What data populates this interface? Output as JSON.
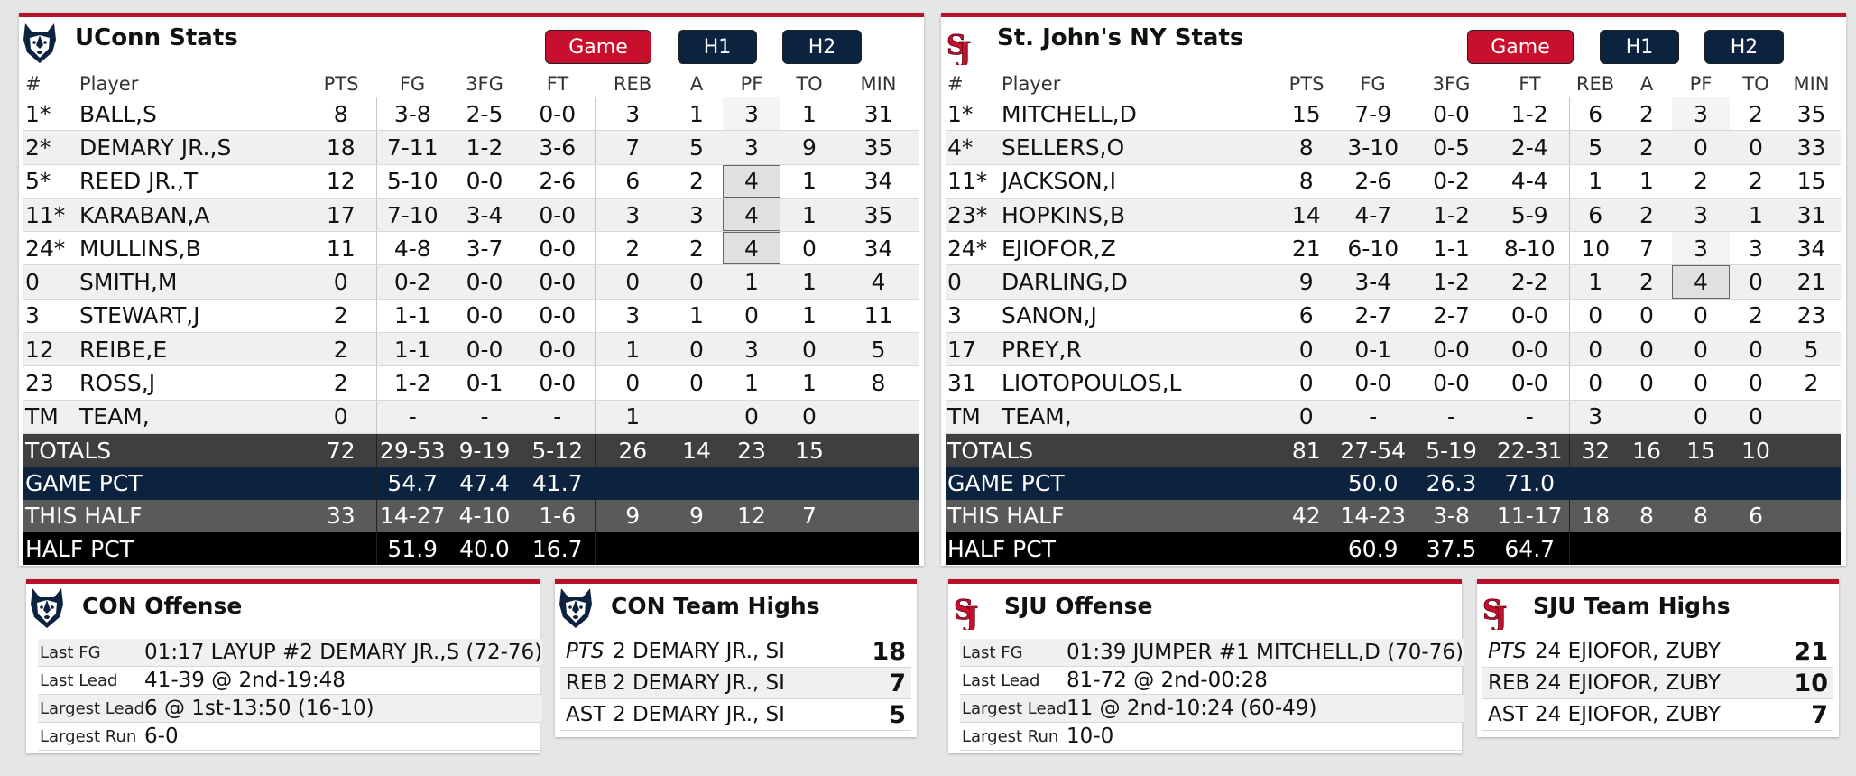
{
  "columns": [
    "#",
    "Player",
    "PTS",
    "FG",
    "3FG",
    "FT",
    "REB",
    "A",
    "PF",
    "TO",
    "MIN"
  ],
  "buttons": [
    "Game",
    "H1",
    "H2"
  ],
  "uconn": {
    "title": "UConn Stats",
    "players": [
      {
        "num": "1*",
        "name": "BALL,S",
        "pts": "8",
        "fg": "3-8",
        "tfg": "2-5",
        "ft": "0-0",
        "reb": "3",
        "a": "1",
        "pf": "3",
        "to": "1",
        "min": "31"
      },
      {
        "num": "2*",
        "name": "DEMARY JR.,S",
        "pts": "18",
        "fg": "7-11",
        "tfg": "1-2",
        "ft": "3-6",
        "reb": "7",
        "a": "5",
        "pf": "3",
        "to": "9",
        "min": "35"
      },
      {
        "num": "5*",
        "name": "REED JR.,T",
        "pts": "12",
        "fg": "5-10",
        "tfg": "0-0",
        "ft": "2-6",
        "reb": "6",
        "a": "2",
        "pf": "4",
        "to": "1",
        "min": "34"
      },
      {
        "num": "11*",
        "name": "KARABAN,A",
        "pts": "17",
        "fg": "7-10",
        "tfg": "3-4",
        "ft": "0-0",
        "reb": "3",
        "a": "3",
        "pf": "4",
        "to": "1",
        "min": "35"
      },
      {
        "num": "24*",
        "name": "MULLINS,B",
        "pts": "11",
        "fg": "4-8",
        "tfg": "3-7",
        "ft": "0-0",
        "reb": "2",
        "a": "2",
        "pf": "4",
        "to": "0",
        "min": "34"
      },
      {
        "num": "0",
        "name": "SMITH,M",
        "pts": "0",
        "fg": "0-2",
        "tfg": "0-0",
        "ft": "0-0",
        "reb": "0",
        "a": "0",
        "pf": "1",
        "to": "1",
        "min": "4"
      },
      {
        "num": "3",
        "name": "STEWART,J",
        "pts": "2",
        "fg": "1-1",
        "tfg": "0-0",
        "ft": "0-0",
        "reb": "3",
        "a": "1",
        "pf": "0",
        "to": "1",
        "min": "11"
      },
      {
        "num": "12",
        "name": "REIBE,E",
        "pts": "2",
        "fg": "1-1",
        "tfg": "0-0",
        "ft": "0-0",
        "reb": "1",
        "a": "0",
        "pf": "3",
        "to": "0",
        "min": "5"
      },
      {
        "num": "23",
        "name": "ROSS,J",
        "pts": "2",
        "fg": "1-2",
        "tfg": "0-1",
        "ft": "0-0",
        "reb": "0",
        "a": "0",
        "pf": "1",
        "to": "1",
        "min": "8"
      },
      {
        "num": "TM",
        "name": "TEAM,",
        "pts": "0",
        "fg": "-",
        "tfg": "-",
        "ft": "-",
        "reb": "1",
        "a": "",
        "pf": "0",
        "to": "0",
        "min": ""
      }
    ],
    "totals": {
      "label": "TOTALS",
      "pts": "72",
      "fg": "29-53",
      "tfg": "9-19",
      "ft": "5-12",
      "reb": "26",
      "a": "14",
      "pf": "23",
      "to": "15"
    },
    "game_pct": {
      "label": "GAME PCT",
      "fg": "54.7",
      "tfg": "47.4",
      "ft": "41.7"
    },
    "this_half": {
      "label": "THIS HALF",
      "pts": "33",
      "fg": "14-27",
      "tfg": "4-10",
      "ft": "1-6",
      "reb": "9",
      "a": "9",
      "pf": "12",
      "to": "7"
    },
    "half_pct": {
      "label": "HALF PCT",
      "fg": "51.9",
      "tfg": "40.0",
      "ft": "16.7"
    },
    "offense": {
      "title": "CON Offense",
      "rows": [
        {
          "k": "Last FG",
          "v": "01:17 LAYUP #2 DEMARY JR.,S (72-76)"
        },
        {
          "k": "Last Lead",
          "v": "41-39 @ 2nd-19:48"
        },
        {
          "k": "Largest Lead",
          "v": "6 @ 1st-13:50 (16-10)"
        },
        {
          "k": "Largest Run",
          "v": "6-0"
        }
      ]
    },
    "highs": {
      "title": "CON Team Highs",
      "rows": [
        {
          "cat": "PTS",
          "player": "2 DEMARY JR., SI",
          "value": "18"
        },
        {
          "cat": "REB",
          "player": "2 DEMARY JR., SI",
          "value": "7"
        },
        {
          "cat": "AST",
          "player": "2 DEMARY JR., SI",
          "value": "5"
        }
      ]
    }
  },
  "sju": {
    "title": "St. John's NY Stats",
    "players": [
      {
        "num": "1*",
        "name": "MITCHELL,D",
        "pts": "15",
        "fg": "7-9",
        "tfg": "0-0",
        "ft": "1-2",
        "reb": "6",
        "a": "2",
        "pf": "3",
        "to": "2",
        "min": "35"
      },
      {
        "num": "4*",
        "name": "SELLERS,O",
        "pts": "8",
        "fg": "3-10",
        "tfg": "0-5",
        "ft": "2-4",
        "reb": "5",
        "a": "2",
        "pf": "0",
        "to": "0",
        "min": "33"
      },
      {
        "num": "11*",
        "name": "JACKSON,I",
        "pts": "8",
        "fg": "2-6",
        "tfg": "0-2",
        "ft": "4-4",
        "reb": "1",
        "a": "1",
        "pf": "2",
        "to": "2",
        "min": "15"
      },
      {
        "num": "23*",
        "name": "HOPKINS,B",
        "pts": "14",
        "fg": "4-7",
        "tfg": "1-2",
        "ft": "5-9",
        "reb": "6",
        "a": "2",
        "pf": "3",
        "to": "1",
        "min": "31"
      },
      {
        "num": "24*",
        "name": "EJIOFOR,Z",
        "pts": "21",
        "fg": "6-10",
        "tfg": "1-1",
        "ft": "8-10",
        "reb": "10",
        "a": "7",
        "pf": "3",
        "to": "3",
        "min": "34"
      },
      {
        "num": "0",
        "name": "DARLING,D",
        "pts": "9",
        "fg": "3-4",
        "tfg": "1-2",
        "ft": "2-2",
        "reb": "1",
        "a": "2",
        "pf": "4",
        "to": "0",
        "min": "21"
      },
      {
        "num": "3",
        "name": "SANON,J",
        "pts": "6",
        "fg": "2-7",
        "tfg": "2-7",
        "ft": "0-0",
        "reb": "0",
        "a": "0",
        "pf": "0",
        "to": "2",
        "min": "23"
      },
      {
        "num": "17",
        "name": "PREY,R",
        "pts": "0",
        "fg": "0-1",
        "tfg": "0-0",
        "ft": "0-0",
        "reb": "0",
        "a": "0",
        "pf": "0",
        "to": "0",
        "min": "5"
      },
      {
        "num": "31",
        "name": "LIOTOPOULOS,L",
        "pts": "0",
        "fg": "0-0",
        "tfg": "0-0",
        "ft": "0-0",
        "reb": "0",
        "a": "0",
        "pf": "0",
        "to": "0",
        "min": "2"
      },
      {
        "num": "TM",
        "name": "TEAM,",
        "pts": "0",
        "fg": "-",
        "tfg": "-",
        "ft": "-",
        "reb": "3",
        "a": "",
        "pf": "0",
        "to": "0",
        "min": ""
      }
    ],
    "totals": {
      "label": "TOTALS",
      "pts": "81",
      "fg": "27-54",
      "tfg": "5-19",
      "ft": "22-31",
      "reb": "32",
      "a": "16",
      "pf": "15",
      "to": "10"
    },
    "game_pct": {
      "label": "GAME PCT",
      "fg": "50.0",
      "tfg": "26.3",
      "ft": "71.0"
    },
    "this_half": {
      "label": "THIS HALF",
      "pts": "42",
      "fg": "14-23",
      "tfg": "3-8",
      "ft": "11-17",
      "reb": "18",
      "a": "8",
      "pf": "8",
      "to": "6"
    },
    "half_pct": {
      "label": "HALF PCT",
      "fg": "60.9",
      "tfg": "37.5",
      "ft": "64.7"
    },
    "offense": {
      "title": "SJU Offense",
      "rows": [
        {
          "k": "Last FG",
          "v": "01:39 JUMPER #1 MITCHELL,D (70-76)"
        },
        {
          "k": "Last Lead",
          "v": "81-72 @ 2nd-00:28"
        },
        {
          "k": "Largest Lead",
          "v": "11 @ 2nd-10:24 (60-49)"
        },
        {
          "k": "Largest Run",
          "v": "10-0"
        }
      ]
    },
    "highs": {
      "title": "SJU Team Highs",
      "rows": [
        {
          "cat": "PTS",
          "player": "24 EJIOFOR, ZUBY",
          "value": "21"
        },
        {
          "cat": "REB",
          "player": "24 EJIOFOR, ZUBY",
          "value": "10"
        },
        {
          "cat": "AST",
          "player": "24 EJIOFOR, ZUBY",
          "value": "7"
        }
      ]
    }
  },
  "colors": {
    "accent_red": "#b5122c",
    "button_red": "#c8102e",
    "navy": "#0c2340",
    "totals_bg": "#3f3f3f",
    "this_half_bg": "#5a5a5a"
  },
  "icons": {
    "uconn_logo": "husky-logo-icon",
    "sju_logo": "sj-monogram-logo-icon"
  }
}
